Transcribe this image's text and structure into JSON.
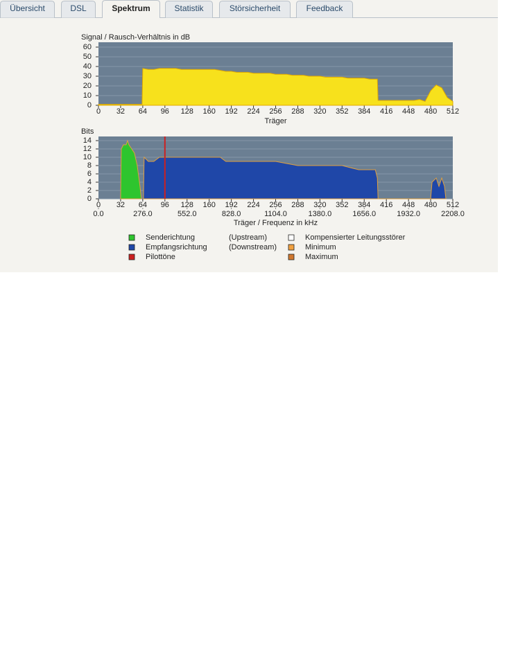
{
  "tabs": [
    "Übersicht",
    "DSL",
    "Spektrum",
    "Statistik",
    "Störsicherheit",
    "Feedback"
  ],
  "active_tab": 2,
  "chart_data": [
    {
      "type": "area",
      "y_label": "Signal / Rausch-Verhältnis in dB",
      "x_label": "Träger",
      "xlim": [
        0,
        512
      ],
      "xticks": [
        0,
        32,
        64,
        96,
        128,
        160,
        192,
        224,
        256,
        288,
        320,
        352,
        384,
        416,
        448,
        480,
        512
      ],
      "ylim": [
        0,
        65
      ],
      "yticks": [
        0,
        10,
        20,
        30,
        40,
        50,
        60
      ],
      "grid": true,
      "plot_background": "#6b7f93",
      "series": [
        {
          "color": "#f7e11c",
          "line_color": "#e0a800",
          "x": [
            0,
            8,
            16,
            24,
            32,
            40,
            48,
            56,
            63,
            64,
            72,
            80,
            88,
            96,
            104,
            112,
            120,
            128,
            136,
            144,
            152,
            160,
            168,
            176,
            184,
            192,
            200,
            208,
            216,
            224,
            232,
            240,
            248,
            256,
            264,
            272,
            280,
            288,
            296,
            304,
            312,
            320,
            328,
            336,
            344,
            352,
            360,
            368,
            376,
            384,
            392,
            400,
            403,
            404,
            416,
            424,
            432,
            440,
            448,
            456,
            464,
            472,
            480,
            488,
            496,
            504,
            512
          ],
          "values": [
            1,
            1,
            1,
            1,
            1,
            1,
            1,
            1,
            1,
            38,
            37,
            37,
            38,
            38,
            38,
            38,
            37,
            37,
            37,
            37,
            37,
            37,
            37,
            36,
            35,
            35,
            34,
            34,
            34,
            33,
            33,
            33,
            33,
            32,
            32,
            32,
            31,
            31,
            31,
            30,
            30,
            30,
            29,
            29,
            29,
            29,
            28,
            28,
            28,
            28,
            27,
            27,
            27,
            5,
            5,
            5,
            5,
            5,
            5,
            5,
            6,
            4,
            15,
            21,
            18,
            8,
            4
          ]
        }
      ]
    },
    {
      "type": "area",
      "y_label": "Bits",
      "x_label": "Träger / Frequenz in kHz",
      "xlim": [
        0,
        512
      ],
      "xticks": [
        0,
        32,
        64,
        96,
        128,
        160,
        192,
        224,
        256,
        288,
        320,
        352,
        384,
        416,
        448,
        480,
        512
      ],
      "x2lim": [
        0,
        2208
      ],
      "x2ticks": [
        {
          "value": 0,
          "label": "0.0"
        },
        {
          "value": 276,
          "label": "276.0"
        },
        {
          "value": 552,
          "label": "552.0"
        },
        {
          "value": 828,
          "label": "828.0"
        },
        {
          "value": 1104,
          "label": "1104.0"
        },
        {
          "value": 1380,
          "label": "1380.0"
        },
        {
          "value": 1656,
          "label": "1656.0"
        },
        {
          "value": 1932,
          "label": "1932.0"
        },
        {
          "value": 2208,
          "label": "2208.0"
        }
      ],
      "ylim": [
        0,
        15
      ],
      "yticks": [
        0,
        2,
        4,
        6,
        8,
        10,
        12,
        14
      ],
      "grid": true,
      "plot_background": "#6b7f93",
      "series": [
        {
          "color": "#2ec52e",
          "line_color": "#e0a040",
          "x": [
            32,
            33,
            36,
            40,
            42,
            44,
            48,
            52,
            56,
            60,
            62
          ],
          "values": [
            0,
            12,
            13,
            13,
            14,
            13,
            12,
            11,
            8,
            3,
            0
          ]
        },
        {
          "color": "#1f47a8",
          "line_color": "#e0a040",
          "x": [
            65,
            66,
            72,
            80,
            88,
            96,
            112,
            128,
            144,
            160,
            176,
            184,
            192,
            224,
            256,
            288,
            320,
            352,
            376,
            400,
            403,
            404,
            480,
            482,
            488,
            492,
            496,
            500,
            502
          ],
          "values": [
            0,
            10,
            9,
            9,
            10,
            10,
            10,
            10,
            10,
            10,
            10,
            9,
            9,
            9,
            9,
            8,
            8,
            8,
            7,
            7,
            5,
            0,
            0,
            4,
            5,
            3,
            5,
            3,
            0
          ]
        }
      ],
      "vlines": {
        "color": "#cc2020",
        "x": [
          96
        ]
      },
      "legend": [
        {
          "name": "Senderichtung",
          "note": "(Upstream)",
          "color": "#2ec52e"
        },
        {
          "name": "Empfangsrichtung",
          "note": "(Downstream)",
          "color": "#1f47a8"
        },
        {
          "name": "Pilottöne",
          "color": "#cc2020"
        },
        {
          "name": "Kompensierter Leitungsstörer",
          "color": "#ffffff"
        },
        {
          "name": "Minimum",
          "color": "#f0a040"
        },
        {
          "name": "Maximum",
          "color": "#d07830"
        }
      ]
    }
  ]
}
